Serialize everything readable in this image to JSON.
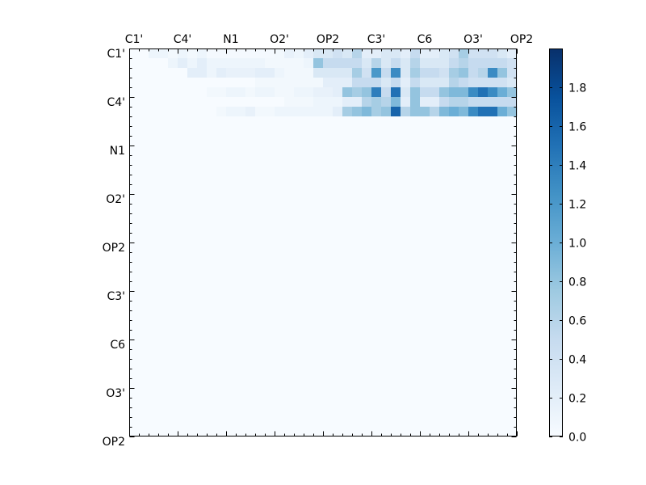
{
  "chart_data": {
    "type": "heatmap",
    "title": "",
    "xlabel": "",
    "ylabel": "",
    "x_tick_labels": [
      "C1'",
      "C4'",
      "N1",
      "O2'",
      "OP2",
      "C3'",
      "C6",
      "O3'",
      "OP2"
    ],
    "y_tick_labels": [
      "C1'",
      "C4'",
      "N1",
      "O2'",
      "OP2",
      "C3'",
      "C6",
      "O3'",
      "OP2"
    ],
    "label_every": 5,
    "grid_size": [
      40,
      40
    ],
    "colormap": "Blues",
    "color_range": [
      0.0,
      2.0
    ],
    "colorbar": {
      "ticks": [
        "0.0",
        "0.2",
        "0.4",
        "0.6",
        "0.8",
        "1.0",
        "1.2",
        "1.4",
        "1.6",
        "1.8"
      ],
      "tick_values": [
        0.0,
        0.2,
        0.4,
        0.6,
        0.8,
        1.0,
        1.2,
        1.4,
        1.6,
        1.8
      ],
      "placement": "right"
    },
    "grid": false,
    "values": [
      [
        0,
        0,
        0.1,
        0.1,
        0.05,
        0.1,
        0.05,
        0.1,
        0.03,
        0.03,
        0.03,
        0.03,
        0.03,
        0.03,
        0.03,
        0.05,
        0.15,
        0.1,
        0.2,
        0.3,
        0.3,
        0.4,
        0.3,
        0.6,
        0.2,
        0.2,
        0.3,
        0.3,
        0.2,
        0.5,
        0.2,
        0.2,
        0.3,
        0.4,
        0.7,
        0.4,
        0.4,
        0.4,
        0.3,
        0.2
      ],
      [
        0,
        0,
        0,
        0,
        0.1,
        0.2,
        0.1,
        0.2,
        0.1,
        0.1,
        0.1,
        0.1,
        0.1,
        0.1,
        0.05,
        0.05,
        0.05,
        0.05,
        0.1,
        0.8,
        0.5,
        0.5,
        0.5,
        0.5,
        0.3,
        0.6,
        0.3,
        0.5,
        0.3,
        0.6,
        0.3,
        0.3,
        0.3,
        0.5,
        0.6,
        0.5,
        0.5,
        0.5,
        0.5,
        0.4
      ],
      [
        0,
        0,
        0,
        0,
        0,
        0,
        0.2,
        0.2,
        0.1,
        0.2,
        0.15,
        0.15,
        0.15,
        0.2,
        0.2,
        0.1,
        0.05,
        0.05,
        0.05,
        0.3,
        0.3,
        0.3,
        0.3,
        0.7,
        0.4,
        1.2,
        0.5,
        1.3,
        0.3,
        0.7,
        0.5,
        0.5,
        0.4,
        0.7,
        0.8,
        0.5,
        0.6,
        1.3,
        0.8,
        0.4
      ],
      [
        0,
        0,
        0,
        0,
        0,
        0,
        0,
        0,
        0,
        0,
        0,
        0,
        0,
        0.05,
        0.05,
        0.05,
        0.05,
        0.05,
        0.05,
        0.05,
        0.2,
        0.2,
        0.2,
        0.5,
        0.5,
        0.5,
        0.3,
        0.5,
        0.2,
        0.5,
        0.3,
        0.3,
        0.3,
        0.6,
        0.5,
        0.4,
        0.4,
        0.4,
        0.4,
        0.3
      ],
      [
        0,
        0,
        0,
        0,
        0,
        0,
        0,
        0,
        0.05,
        0.05,
        0.1,
        0.1,
        0.05,
        0.1,
        0.1,
        0.05,
        0.05,
        0.1,
        0.1,
        0.15,
        0.15,
        0.2,
        0.8,
        0.7,
        0.8,
        1.4,
        0.5,
        1.5,
        0.3,
        0.8,
        0.5,
        0.5,
        0.8,
        0.9,
        0.9,
        1.3,
        1.5,
        1.3,
        1.0,
        0.8
      ],
      [
        0,
        0,
        0,
        0,
        0,
        0,
        0,
        0,
        0,
        0,
        0,
        0,
        0,
        0,
        0,
        0,
        0.05,
        0.05,
        0.05,
        0.1,
        0.1,
        0.1,
        0.2,
        0.2,
        0.6,
        0.7,
        0.6,
        0.9,
        0.2,
        0.8,
        0.2,
        0.2,
        0.5,
        0.6,
        0.6,
        0.5,
        0.5,
        0.5,
        0.5,
        0.5
      ],
      [
        0,
        0,
        0,
        0,
        0,
        0,
        0,
        0,
        0,
        0.05,
        0.1,
        0.1,
        0.15,
        0.05,
        0.05,
        0.1,
        0.1,
        0.1,
        0.1,
        0.1,
        0.1,
        0.2,
        0.7,
        0.8,
        0.9,
        0.7,
        0.8,
        1.6,
        0.6,
        0.8,
        0.8,
        0.6,
        0.9,
        1.0,
        0.9,
        1.3,
        1.5,
        1.5,
        1.0,
        0.8
      ],
      [
        0,
        0,
        0,
        0,
        0,
        0,
        0,
        0,
        0,
        0,
        0,
        0,
        0,
        0,
        0,
        0,
        0,
        0,
        0,
        0,
        0,
        0,
        0,
        0,
        0,
        0,
        0,
        0,
        0,
        0,
        0,
        0,
        0,
        0,
        0,
        0,
        0,
        0,
        0,
        0
      ],
      [
        0,
        0,
        0,
        0,
        0,
        0,
        0,
        0,
        0,
        0,
        0,
        0,
        0,
        0,
        0,
        0,
        0,
        0,
        0,
        0,
        0,
        0,
        0,
        0,
        0,
        0,
        0,
        0,
        0,
        0,
        0,
        0,
        0,
        0,
        0,
        0,
        0,
        0,
        0,
        0
      ],
      [
        0,
        0,
        0,
        0,
        0,
        0,
        0,
        0,
        0,
        0,
        0,
        0,
        0,
        0,
        0,
        0,
        0,
        0,
        0,
        0,
        0,
        0,
        0,
        0,
        0,
        0,
        0,
        0,
        0,
        0,
        0,
        0,
        0,
        0,
        0,
        0,
        0,
        0,
        0,
        0
      ],
      [
        0,
        0,
        0,
        0,
        0,
        0,
        0,
        0,
        0,
        0,
        0,
        0,
        0,
        0,
        0,
        0,
        0,
        0,
        0,
        0,
        0,
        0,
        0,
        0,
        0,
        0,
        0,
        0,
        0,
        0,
        0,
        0,
        0,
        0,
        0,
        0,
        0,
        0,
        0,
        0
      ],
      [
        0,
        0,
        0,
        0,
        0,
        0,
        0,
        0,
        0,
        0,
        0,
        0,
        0,
        0,
        0,
        0,
        0,
        0,
        0,
        0,
        0,
        0,
        0,
        0,
        0,
        0,
        0,
        0,
        0,
        0,
        0,
        0,
        0,
        0,
        0,
        0,
        0,
        0,
        0,
        0
      ],
      [
        0,
        0,
        0,
        0,
        0,
        0,
        0,
        0,
        0,
        0,
        0,
        0,
        0,
        0,
        0,
        0,
        0,
        0,
        0,
        0,
        0,
        0,
        0,
        0,
        0,
        0,
        0,
        0,
        0,
        0,
        0,
        0,
        0,
        0,
        0,
        0,
        0,
        0,
        0,
        0
      ],
      [
        0,
        0,
        0,
        0,
        0,
        0,
        0,
        0,
        0,
        0,
        0,
        0,
        0,
        0,
        0,
        0,
        0,
        0,
        0,
        0,
        0,
        0,
        0,
        0,
        0,
        0,
        0,
        0,
        0,
        0,
        0,
        0,
        0,
        0,
        0,
        0,
        0,
        0,
        0,
        0
      ],
      [
        0,
        0,
        0,
        0,
        0,
        0,
        0,
        0,
        0,
        0,
        0,
        0,
        0,
        0,
        0,
        0,
        0,
        0,
        0,
        0,
        0,
        0,
        0,
        0,
        0,
        0,
        0,
        0,
        0,
        0,
        0,
        0,
        0,
        0,
        0,
        0,
        0,
        0,
        0,
        0
      ],
      [
        0,
        0,
        0,
        0,
        0,
        0,
        0,
        0,
        0,
        0,
        0,
        0,
        0,
        0,
        0,
        0,
        0,
        0,
        0,
        0,
        0,
        0,
        0,
        0,
        0,
        0,
        0,
        0,
        0,
        0,
        0,
        0,
        0,
        0,
        0,
        0,
        0,
        0,
        0,
        0
      ],
      [
        0,
        0,
        0,
        0,
        0,
        0,
        0,
        0,
        0,
        0,
        0,
        0,
        0,
        0,
        0,
        0,
        0,
        0,
        0,
        0,
        0,
        0,
        0,
        0,
        0,
        0,
        0,
        0,
        0,
        0,
        0,
        0,
        0,
        0,
        0,
        0,
        0,
        0,
        0,
        0
      ],
      [
        0,
        0,
        0,
        0,
        0,
        0,
        0,
        0,
        0,
        0,
        0,
        0,
        0,
        0,
        0,
        0,
        0,
        0,
        0,
        0,
        0,
        0,
        0,
        0,
        0,
        0,
        0,
        0,
        0,
        0,
        0,
        0,
        0,
        0,
        0,
        0,
        0,
        0,
        0,
        0
      ],
      [
        0,
        0,
        0,
        0,
        0,
        0,
        0,
        0,
        0,
        0,
        0,
        0,
        0,
        0,
        0,
        0,
        0,
        0,
        0,
        0,
        0,
        0,
        0,
        0,
        0,
        0,
        0,
        0,
        0,
        0,
        0,
        0,
        0,
        0,
        0,
        0,
        0,
        0,
        0,
        0
      ],
      [
        0,
        0,
        0,
        0,
        0,
        0,
        0,
        0,
        0,
        0,
        0,
        0,
        0,
        0,
        0,
        0,
        0,
        0,
        0,
        0,
        0,
        0,
        0,
        0,
        0,
        0,
        0,
        0,
        0,
        0,
        0,
        0,
        0,
        0,
        0,
        0,
        0,
        0,
        0,
        0
      ],
      [
        0,
        0,
        0,
        0,
        0,
        0,
        0,
        0,
        0,
        0,
        0,
        0,
        0,
        0,
        0,
        0,
        0,
        0,
        0,
        0,
        0,
        0,
        0,
        0,
        0,
        0,
        0,
        0,
        0,
        0,
        0,
        0,
        0,
        0,
        0,
        0,
        0,
        0,
        0,
        0
      ],
      [
        0,
        0,
        0,
        0,
        0,
        0,
        0,
        0,
        0,
        0,
        0,
        0,
        0,
        0,
        0,
        0,
        0,
        0,
        0,
        0,
        0,
        0,
        0,
        0,
        0,
        0,
        0,
        0,
        0,
        0,
        0,
        0,
        0,
        0,
        0,
        0,
        0,
        0,
        0,
        0
      ],
      [
        0,
        0,
        0,
        0,
        0,
        0,
        0,
        0,
        0,
        0,
        0,
        0,
        0,
        0,
        0,
        0,
        0,
        0,
        0,
        0,
        0,
        0,
        0,
        0,
        0,
        0,
        0,
        0,
        0,
        0,
        0,
        0,
        0,
        0,
        0,
        0,
        0,
        0,
        0,
        0
      ],
      [
        0,
        0,
        0,
        0,
        0,
        0,
        0,
        0,
        0,
        0,
        0,
        0,
        0,
        0,
        0,
        0,
        0,
        0,
        0,
        0,
        0,
        0,
        0,
        0,
        0,
        0,
        0,
        0,
        0,
        0,
        0,
        0,
        0,
        0,
        0,
        0,
        0,
        0,
        0,
        0
      ],
      [
        0,
        0,
        0,
        0,
        0,
        0,
        0,
        0,
        0,
        0,
        0,
        0,
        0,
        0,
        0,
        0,
        0,
        0,
        0,
        0,
        0,
        0,
        0,
        0,
        0,
        0,
        0,
        0,
        0,
        0,
        0,
        0,
        0,
        0,
        0,
        0,
        0,
        0,
        0,
        0
      ],
      [
        0,
        0,
        0,
        0,
        0,
        0,
        0,
        0,
        0,
        0,
        0,
        0,
        0,
        0,
        0,
        0,
        0,
        0,
        0,
        0,
        0,
        0,
        0,
        0,
        0,
        0,
        0,
        0,
        0,
        0,
        0,
        0,
        0,
        0,
        0,
        0,
        0,
        0,
        0,
        0
      ],
      [
        0,
        0,
        0,
        0,
        0,
        0,
        0,
        0,
        0,
        0,
        0,
        0,
        0,
        0,
        0,
        0,
        0,
        0,
        0,
        0,
        0,
        0,
        0,
        0,
        0,
        0,
        0,
        0,
        0,
        0,
        0,
        0,
        0,
        0,
        0,
        0,
        0,
        0,
        0,
        0
      ],
      [
        0,
        0,
        0,
        0,
        0,
        0,
        0,
        0,
        0,
        0,
        0,
        0,
        0,
        0,
        0,
        0,
        0,
        0,
        0,
        0,
        0,
        0,
        0,
        0,
        0,
        0,
        0,
        0,
        0,
        0,
        0,
        0,
        0,
        0,
        0,
        0,
        0,
        0,
        0,
        0
      ],
      [
        0,
        0,
        0,
        0,
        0,
        0,
        0,
        0,
        0,
        0,
        0,
        0,
        0,
        0,
        0,
        0,
        0,
        0,
        0,
        0,
        0,
        0,
        0,
        0,
        0,
        0,
        0,
        0,
        0,
        0,
        0,
        0,
        0,
        0,
        0,
        0,
        0,
        0,
        0,
        0
      ],
      [
        0,
        0,
        0,
        0,
        0,
        0,
        0,
        0,
        0,
        0,
        0,
        0,
        0,
        0,
        0,
        0,
        0,
        0,
        0,
        0,
        0,
        0,
        0,
        0,
        0,
        0,
        0,
        0,
        0,
        0,
        0,
        0,
        0,
        0,
        0,
        0,
        0,
        0,
        0,
        0
      ],
      [
        0,
        0,
        0,
        0,
        0,
        0,
        0,
        0,
        0,
        0,
        0,
        0,
        0,
        0,
        0,
        0,
        0,
        0,
        0,
        0,
        0,
        0,
        0,
        0,
        0,
        0,
        0,
        0,
        0,
        0,
        0,
        0,
        0,
        0,
        0,
        0,
        0,
        0,
        0,
        0
      ],
      [
        0,
        0,
        0,
        0,
        0,
        0,
        0,
        0,
        0,
        0,
        0,
        0,
        0,
        0,
        0,
        0,
        0,
        0,
        0,
        0,
        0,
        0,
        0,
        0,
        0,
        0,
        0,
        0,
        0,
        0,
        0,
        0,
        0,
        0,
        0,
        0,
        0,
        0,
        0,
        0
      ],
      [
        0,
        0,
        0,
        0,
        0,
        0,
        0,
        0,
        0,
        0,
        0,
        0,
        0,
        0,
        0,
        0,
        0,
        0,
        0,
        0,
        0,
        0,
        0,
        0,
        0,
        0,
        0,
        0,
        0,
        0,
        0,
        0,
        0,
        0,
        0,
        0,
        0,
        0,
        0,
        0
      ],
      [
        0,
        0,
        0,
        0,
        0,
        0,
        0,
        0,
        0,
        0,
        0,
        0,
        0,
        0,
        0,
        0,
        0,
        0,
        0,
        0,
        0,
        0,
        0,
        0,
        0,
        0,
        0,
        0,
        0,
        0,
        0,
        0,
        0,
        0,
        0,
        0,
        0,
        0,
        0,
        0
      ],
      [
        0,
        0,
        0,
        0,
        0,
        0,
        0,
        0,
        0,
        0,
        0,
        0,
        0,
        0,
        0,
        0,
        0,
        0,
        0,
        0,
        0,
        0,
        0,
        0,
        0,
        0,
        0,
        0,
        0,
        0,
        0,
        0,
        0,
        0,
        0,
        0,
        0,
        0,
        0,
        0
      ],
      [
        0,
        0,
        0,
        0,
        0,
        0,
        0,
        0,
        0,
        0,
        0,
        0,
        0,
        0,
        0,
        0,
        0,
        0,
        0,
        0,
        0,
        0,
        0,
        0,
        0,
        0,
        0,
        0,
        0,
        0,
        0,
        0,
        0,
        0,
        0,
        0,
        0,
        0,
        0,
        0
      ],
      [
        0,
        0,
        0,
        0,
        0,
        0,
        0,
        0,
        0,
        0,
        0,
        0,
        0,
        0,
        0,
        0,
        0,
        0,
        0,
        0,
        0,
        0,
        0,
        0,
        0,
        0,
        0,
        0,
        0,
        0,
        0,
        0,
        0,
        0,
        0,
        0,
        0,
        0,
        0,
        0
      ],
      [
        0,
        0,
        0,
        0,
        0,
        0,
        0,
        0,
        0,
        0,
        0,
        0,
        0,
        0,
        0,
        0,
        0,
        0,
        0,
        0,
        0,
        0,
        0,
        0,
        0,
        0,
        0,
        0,
        0,
        0,
        0,
        0,
        0,
        0,
        0,
        0,
        0,
        0,
        0,
        0
      ],
      [
        0,
        0,
        0,
        0,
        0,
        0,
        0,
        0,
        0,
        0,
        0,
        0,
        0,
        0,
        0,
        0,
        0,
        0,
        0,
        0,
        0,
        0,
        0,
        0,
        0,
        0,
        0,
        0,
        0,
        0,
        0,
        0,
        0,
        0,
        0,
        0,
        0,
        0,
        0,
        0
      ],
      [
        0,
        0,
        0,
        0,
        0,
        0,
        0,
        0,
        0,
        0,
        0,
        0,
        0,
        0,
        0,
        0,
        0,
        0,
        0,
        0,
        0,
        0,
        0,
        0,
        0,
        0,
        0,
        0,
        0,
        0,
        0,
        0,
        0,
        0,
        0,
        0,
        0,
        0,
        0,
        0
      ]
    ]
  }
}
